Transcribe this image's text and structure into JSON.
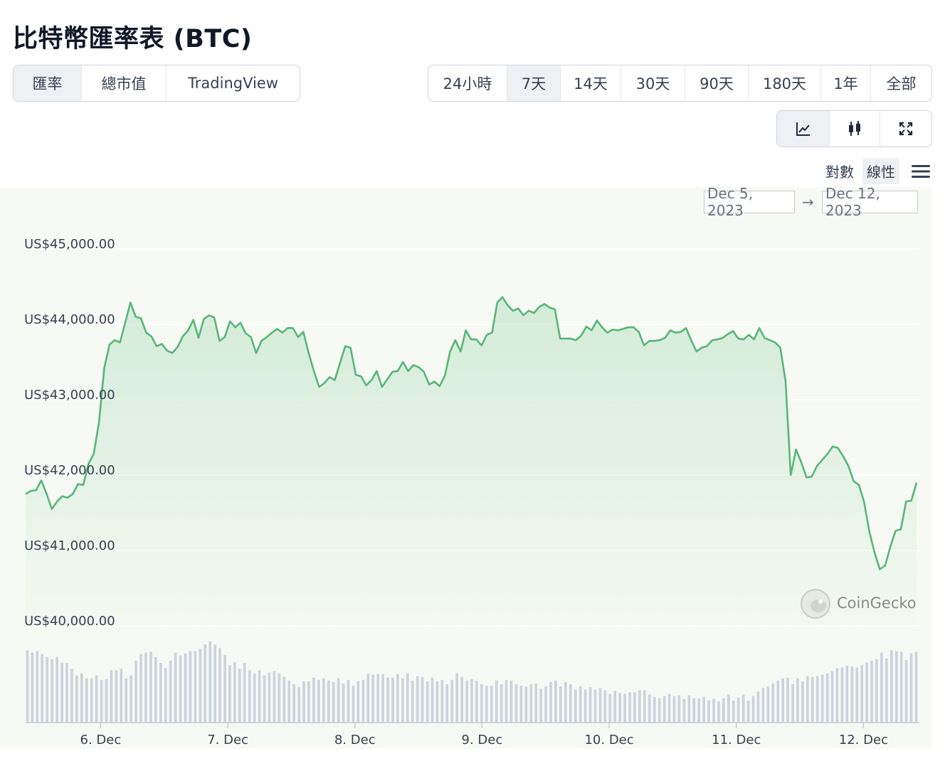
{
  "page": {
    "title": "比特幣匯率表 (BTC)"
  },
  "view_tabs": [
    {
      "label": "匯率",
      "active": true
    },
    {
      "label": "總市值",
      "active": false
    },
    {
      "label": "TradingView",
      "active": false
    }
  ],
  "range_tabs": [
    {
      "label": "24小時",
      "active": false
    },
    {
      "label": "7天",
      "active": true
    },
    {
      "label": "14天",
      "active": false
    },
    {
      "label": "30天",
      "active": false
    },
    {
      "label": "90天",
      "active": false
    },
    {
      "label": "180天",
      "active": false
    },
    {
      "label": "1年",
      "active": false
    },
    {
      "label": "全部",
      "active": false
    }
  ],
  "chart_type_buttons": [
    {
      "icon": "line-chart-icon",
      "active": true
    },
    {
      "icon": "candlestick-icon",
      "active": false
    },
    {
      "icon": "expand-icon",
      "active": false
    }
  ],
  "scale": {
    "log_label": "對數",
    "linear_label": "線性",
    "active": "linear",
    "menu_icon": "hamburger-menu-icon"
  },
  "date_range": {
    "from": "Dec 5, 2023",
    "arrow": "→",
    "to": "Dec 12, 2023"
  },
  "watermark": "CoinGecko",
  "colors": {
    "line": "#58b678",
    "volume": "#cdd3dd",
    "active_tab": "#eef0f3"
  },
  "chart_data": {
    "type": "area",
    "title": "",
    "xlabel": "",
    "ylabel": "",
    "x_ticks": [
      {
        "label": "6. Dec",
        "t": 0.59
      },
      {
        "label": "7. Dec",
        "t": 1.59
      },
      {
        "label": "8. Dec",
        "t": 2.59
      },
      {
        "label": "9. Dec",
        "t": 3.59
      },
      {
        "label": "10. Dec",
        "t": 4.59
      },
      {
        "label": "11. Dec",
        "t": 5.59
      },
      {
        "label": "12. Dec",
        "t": 6.59
      }
    ],
    "y_ticks": [
      "US$45,000.00",
      "US$44,000.00",
      "US$43,000.00",
      "US$42,000.00",
      "US$41,000.00",
      "US$40,000.00"
    ],
    "y_tick_values": [
      45000,
      44000,
      43000,
      42000,
      41000,
      40000
    ],
    "ylim": [
      40000,
      45000
    ],
    "xlim_days": [
      0,
      7.03
    ],
    "grid": true,
    "legend": "none",
    "price": [
      41750,
      41790,
      41800,
      41930,
      41750,
      41550,
      41650,
      41720,
      41700,
      41750,
      41880,
      41870,
      42150,
      42280,
      42700,
      43420,
      43730,
      43790,
      43760,
      44020,
      44290,
      44100,
      44080,
      43890,
      43840,
      43710,
      43740,
      43650,
      43620,
      43700,
      43840,
      43920,
      44060,
      43820,
      44070,
      44120,
      44090,
      43780,
      43830,
      44040,
      43960,
      44020,
      43880,
      43830,
      43620,
      43780,
      43830,
      43890,
      43940,
      43890,
      43950,
      43950,
      43830,
      43900,
      43620,
      43380,
      43170,
      43220,
      43300,
      43260,
      43490,
      43710,
      43690,
      43330,
      43310,
      43190,
      43260,
      43380,
      43170,
      43270,
      43370,
      43380,
      43500,
      43380,
      43460,
      43430,
      43370,
      43200,
      43240,
      43180,
      43320,
      43640,
      43790,
      43640,
      43920,
      43800,
      43800,
      43720,
      43860,
      43890,
      44290,
      44360,
      44250,
      44180,
      44210,
      44120,
      44180,
      44150,
      44230,
      44270,
      44220,
      44200,
      43810,
      43810,
      43810,
      43790,
      43850,
      43970,
      43920,
      44050,
      43960,
      43890,
      43930,
      43920,
      43940,
      43960,
      43960,
      43900,
      43720,
      43780,
      43780,
      43790,
      43820,
      43920,
      43890,
      43900,
      43950,
      43790,
      43640,
      43690,
      43710,
      43790,
      43800,
      43820,
      43870,
      43910,
      43810,
      43800,
      43860,
      43800,
      43950,
      43820,
      43790,
      43760,
      43690,
      43250,
      42000,
      42340,
      42170,
      41970,
      41980,
      42120,
      42200,
      42280,
      42380,
      42360,
      42250,
      42120,
      41920,
      41870,
      41640,
      41250,
      40970,
      40750,
      40800,
      41050,
      41260,
      41280,
      41650,
      41660,
      41900
    ],
    "volume_relative": [
      98,
      95,
      97,
      93,
      89,
      86,
      89,
      81,
      81,
      73,
      64,
      67,
      60,
      60,
      64,
      58,
      59,
      71,
      71,
      73,
      60,
      64,
      84,
      93,
      95,
      96,
      89,
      81,
      74,
      84,
      95,
      91,
      94,
      97,
      97,
      100,
      106,
      110,
      106,
      101,
      92,
      78,
      82,
      73,
      81,
      71,
      67,
      71,
      64,
      68,
      70,
      67,
      62,
      57,
      52,
      48,
      56,
      56,
      61,
      58,
      60,
      57,
      55,
      60,
      53,
      58,
      50,
      56,
      58,
      66,
      65,
      66,
      66,
      61,
      61,
      66,
      60,
      67,
      57,
      63,
      62,
      56,
      61,
      56,
      58,
      52,
      58,
      67,
      62,
      57,
      59,
      57,
      52,
      50,
      50,
      57,
      52,
      58,
      57,
      52,
      50,
      49,
      52,
      53,
      46,
      49,
      55,
      57,
      49,
      55,
      52,
      45,
      49,
      45,
      48,
      45,
      47,
      44,
      39,
      43,
      40,
      39,
      41,
      41,
      44,
      44,
      38,
      35,
      33,
      36,
      39,
      36,
      37,
      32,
      37,
      33,
      33,
      35,
      30,
      32,
      29,
      33,
      38,
      30,
      34,
      38,
      30,
      36,
      42,
      47,
      49,
      53,
      57,
      60,
      61,
      52,
      60,
      56,
      63,
      62,
      63,
      65,
      67,
      70,
      74,
      75,
      77,
      76,
      75,
      78,
      82,
      84,
      86,
      95,
      87,
      98,
      97,
      96,
      85,
      94,
      96
    ]
  }
}
